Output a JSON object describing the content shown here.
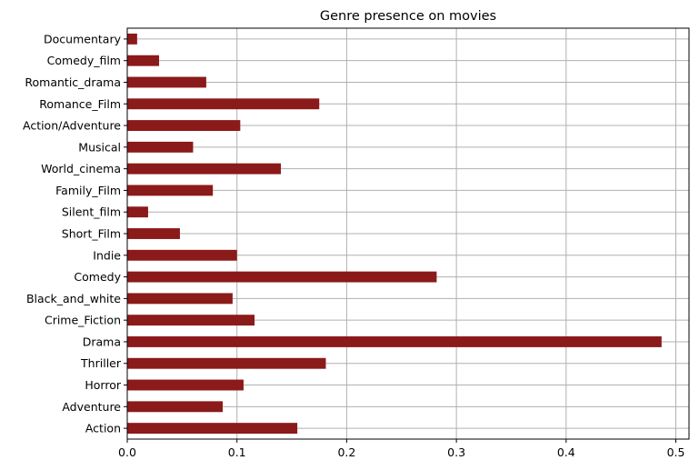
{
  "chart_data": {
    "type": "bar",
    "orientation": "horizontal",
    "title": "Genre presence on movies",
    "xlabel": "",
    "ylabel": "",
    "xlim": [
      0,
      0.512
    ],
    "xticks": [
      0.0,
      0.1,
      0.2,
      0.3,
      0.4,
      0.5
    ],
    "xtick_labels": [
      "0.0",
      "0.1",
      "0.2",
      "0.3",
      "0.4",
      "0.5"
    ],
    "grid": true,
    "bar_color": "#8b1a1a",
    "grid_color": "#b0b0b0",
    "categories": [
      "Action",
      "Adventure",
      "Horror",
      "Thriller",
      "Drama",
      "Crime_Fiction",
      "Black_and_white",
      "Comedy",
      "Indie",
      "Short_Film",
      "Silent_film",
      "Family_Film",
      "World_cinema",
      "Musical",
      "Action/Adventure",
      "Romance_Film",
      "Romantic_drama",
      "Comedy_film",
      "Documentary"
    ],
    "values": [
      0.155,
      0.087,
      0.106,
      0.181,
      0.487,
      0.116,
      0.096,
      0.282,
      0.1,
      0.048,
      0.019,
      0.078,
      0.14,
      0.06,
      0.103,
      0.175,
      0.072,
      0.029,
      0.009
    ]
  }
}
